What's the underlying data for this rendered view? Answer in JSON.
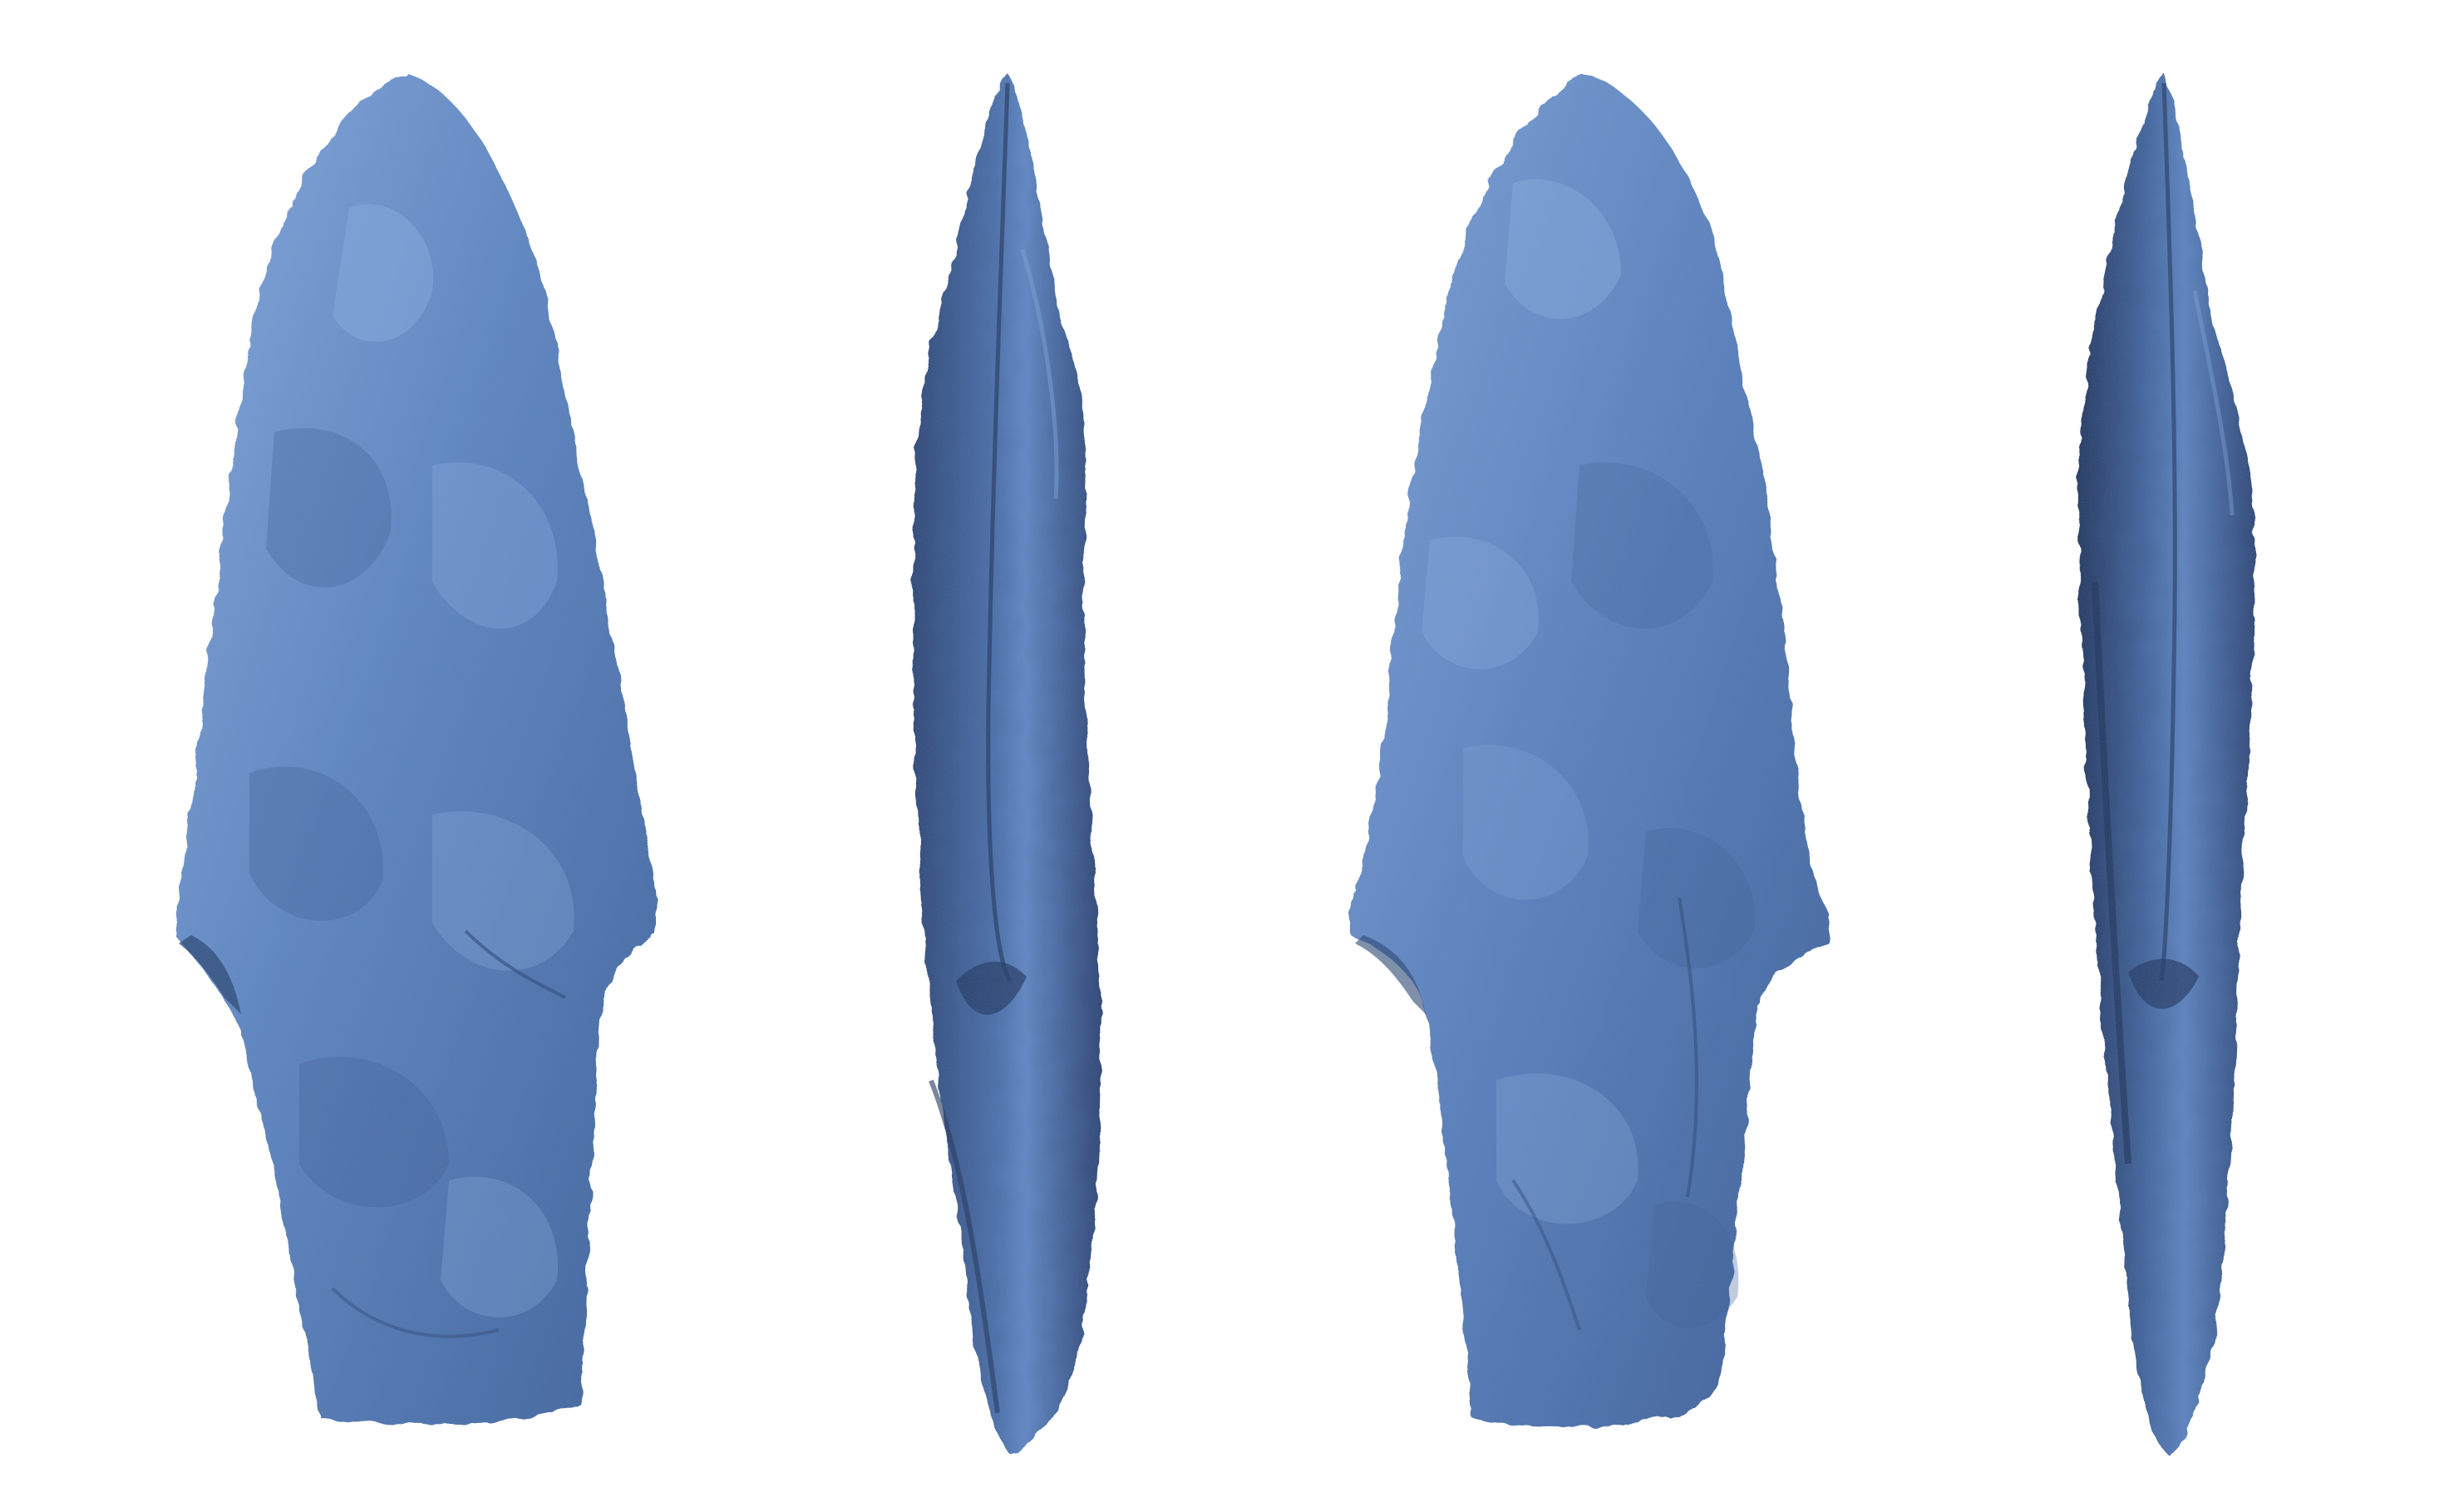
{
  "scene": {
    "background": "#ffffff",
    "subject": "stone-projectile-point-3d-scan",
    "colors": {
      "face_base": "#4f76ae",
      "face_light": "#7ea3d8",
      "face_mid": "#5b82bd",
      "face_shadow": "#2e4a78",
      "edge_base": "#3f5f96",
      "edge_dark": "#1f3560"
    },
    "views": [
      {
        "name": "face-view-front",
        "kind": "face"
      },
      {
        "name": "edge-view-left",
        "kind": "edge"
      },
      {
        "name": "face-view-back",
        "kind": "face"
      },
      {
        "name": "edge-view-right",
        "kind": "edge"
      }
    ]
  }
}
